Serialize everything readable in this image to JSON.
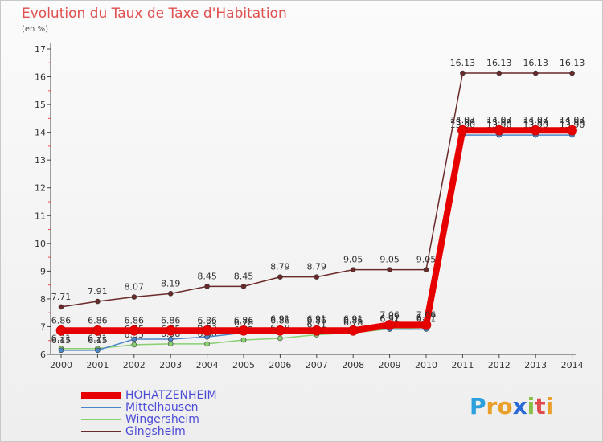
{
  "title": "Evolution du Taux de Taxe d'Habitation",
  "unit_label": "(en %)",
  "logo": {
    "text": "Proxiti",
    "letters": [
      "P",
      "r",
      "o",
      "x",
      "i",
      "t",
      "i"
    ],
    "letter_colors": [
      "#2aa0dc",
      "#e8a02a",
      "#e8a02a",
      "#2a6ad8",
      "#88c048",
      "#e04a4a",
      "#e8a02a"
    ]
  },
  "chart_data": {
    "type": "line",
    "x": [
      "2000",
      "2001",
      "2002",
      "2003",
      "2004",
      "2005",
      "2006",
      "2007",
      "2008",
      "2009",
      "2010",
      "2011",
      "2012",
      "2013",
      "2014"
    ],
    "ylim": [
      6,
      17
    ],
    "yticks": [
      "6",
      "7",
      "8",
      "9",
      "10",
      "11",
      "12",
      "13",
      "14",
      "15",
      "16",
      "17"
    ],
    "grid": false,
    "legend_position": "bottom-left",
    "series": [
      {
        "name": "Gingsheim",
        "color": "#6b2a2a",
        "width": 1.5,
        "marker_r": 3,
        "values": [
          7.71,
          7.91,
          8.07,
          8.19,
          8.45,
          8.45,
          8.79,
          8.79,
          9.05,
          9.05,
          9.05,
          16.13,
          16.13,
          16.13,
          16.13
        ],
        "labels": [
          "7.71",
          "7.91",
          "8.07",
          "8.19",
          "8.45",
          "8.45",
          "8.79",
          "8.79",
          "9.05",
          "9.05",
          "9.05",
          "16.13",
          "16.13",
          "16.13",
          "16.13"
        ]
      },
      {
        "name": "Wingersheim",
        "color": "#88d070",
        "width": 1.5,
        "marker_r": 3,
        "values": [
          6.21,
          6.21,
          6.35,
          6.38,
          6.38,
          6.52,
          6.58,
          6.71,
          6.78,
          6.92,
          6.97,
          13.99,
          13.99,
          13.99,
          13.99
        ],
        "labels": [
          "6.21",
          "6.21",
          "6.35",
          "6.38",
          "6.38",
          "6.52",
          "6.58",
          "6.71",
          "6.78",
          "6.92",
          "6.97",
          "13.99",
          "13.99",
          "13.99",
          "13.99"
        ]
      },
      {
        "name": "Mittelhausen",
        "color": "#4a86c8",
        "width": 1.5,
        "marker_r": 3,
        "values": [
          6.15,
          6.15,
          6.55,
          6.55,
          6.63,
          6.78,
          6.91,
          6.91,
          6.91,
          6.91,
          6.91,
          13.9,
          13.9,
          13.9,
          13.9
        ],
        "labels": [
          "6.15",
          "6.15",
          "6.55",
          "6.55",
          "6.63",
          "6.78",
          "6.91",
          "6.91",
          "6.91",
          "6.91",
          "6.91",
          "13.90",
          "13.90",
          "13.90",
          "13.90"
        ]
      },
      {
        "name": "HOHATZENHEIM",
        "color": "#e60000",
        "width": 8,
        "marker_r": 6,
        "values": [
          6.86,
          6.86,
          6.86,
          6.86,
          6.86,
          6.86,
          6.86,
          6.86,
          6.86,
          7.06,
          7.06,
          14.07,
          14.07,
          14.07,
          14.07
        ],
        "labels": [
          "6.86",
          "6.86",
          "6.86",
          "6.86",
          "6.86",
          "6.86",
          "6.86",
          "6.86",
          "6.86",
          "7.06",
          "7.06",
          "14.07",
          "14.07",
          "14.07",
          "14.07"
        ]
      }
    ],
    "legend_order": [
      "HOHATZENHEIM",
      "Mittelhausen",
      "Wingersheim",
      "Gingsheim"
    ]
  }
}
